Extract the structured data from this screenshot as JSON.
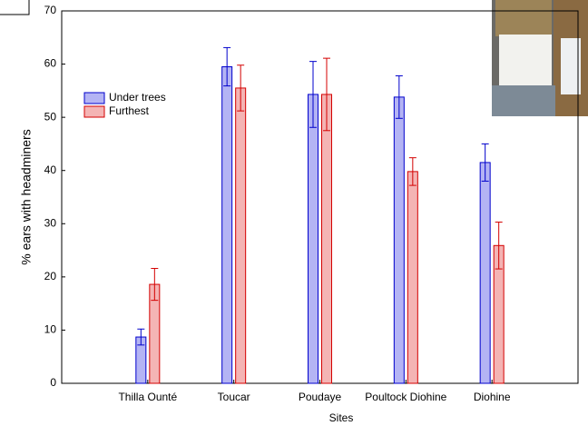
{
  "chart_data": {
    "type": "bar",
    "x_label": "Sites",
    "y_label": "% ears with headminers",
    "categories": [
      "Thilla Ounté",
      "Toucar",
      "Poudaye",
      "Poultock Diohine",
      "Diohine"
    ],
    "series": [
      {
        "name": "Under trees",
        "color": "#b4b4f4",
        "edge": "#0000cc",
        "values": [
          8.7,
          59.5,
          54.3,
          53.8,
          41.5
        ],
        "errors": [
          1.5,
          3.6,
          6.2,
          4.0,
          3.5
        ]
      },
      {
        "name": "Furthest",
        "color": "#f4b4b4",
        "edge": "#d40000",
        "values": [
          18.6,
          55.5,
          54.3,
          39.8,
          25.9
        ],
        "errors": [
          3.0,
          4.3,
          6.8,
          2.6,
          4.4
        ]
      }
    ],
    "ylim": [
      0,
      70
    ],
    "yticks": [
      0,
      10,
      20,
      30,
      40,
      50,
      60,
      70
    ],
    "grid": false,
    "legend": "upper left"
  }
}
